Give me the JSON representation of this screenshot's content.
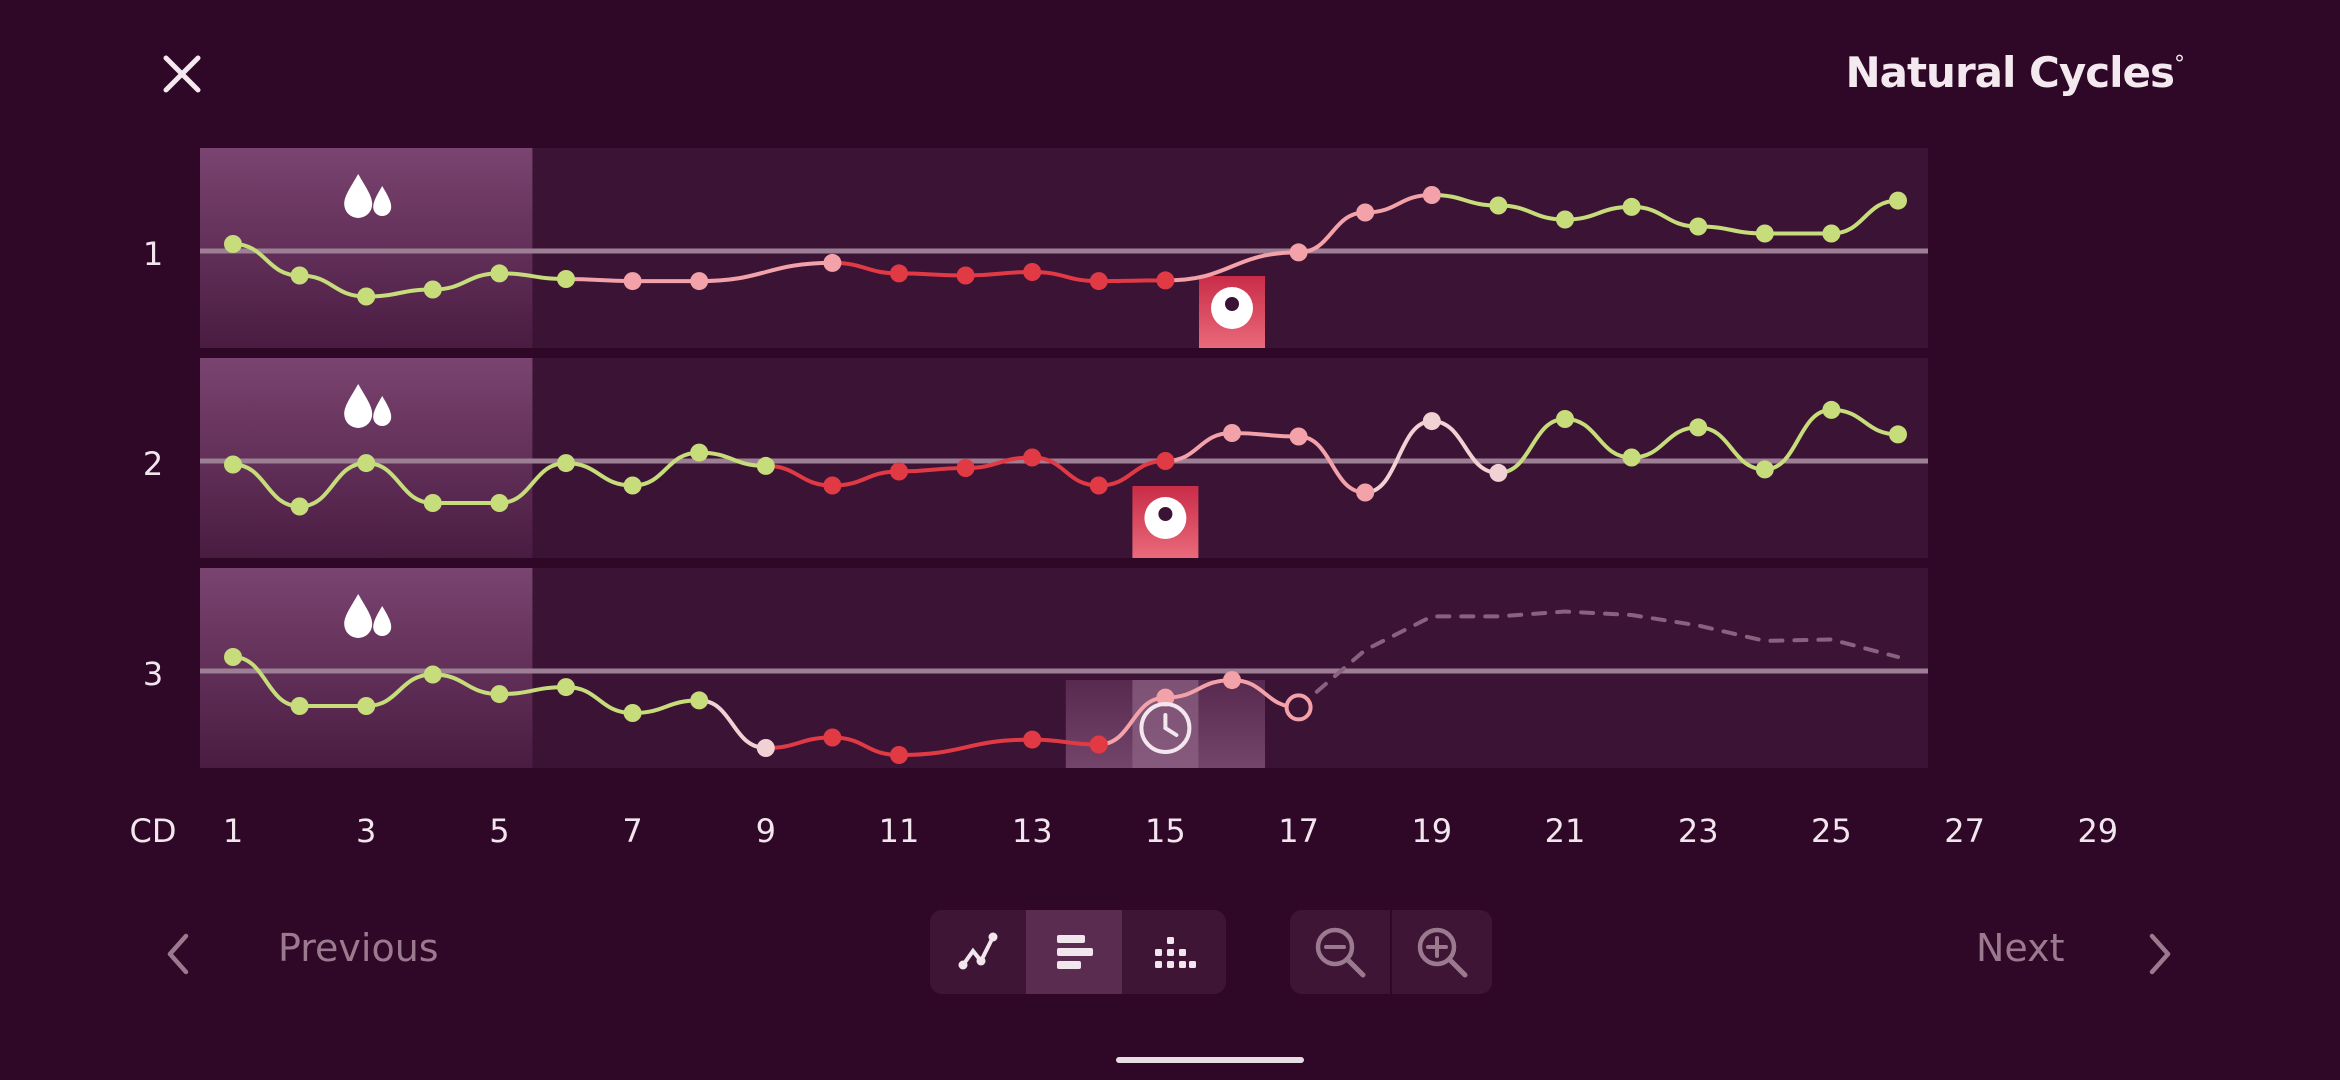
{
  "header": {
    "close_icon": "close-icon",
    "brand_name": "Natural Cycles",
    "brand_mark": "°"
  },
  "colors": {
    "background": "#2f0727",
    "panel": "#3b1335",
    "period": "#6e3762",
    "green": "#c7dc7a",
    "pink": "#f2a2a8",
    "red": "#e23a44",
    "pale": "#f0d2d4",
    "predicted": "#8a6280"
  },
  "x_axis": {
    "label": "CD",
    "ticks": [
      "1",
      "3",
      "5",
      "7",
      "9",
      "11",
      "13",
      "15",
      "17",
      "19",
      "21",
      "23",
      "25",
      "27",
      "29"
    ]
  },
  "cycles": [
    {
      "label": "1",
      "period_days": [
        1,
        5
      ],
      "ovulation_day": 16,
      "ovulation_icon": "ovulation-icon",
      "points": [
        {
          "day": 1,
          "v": 0.1,
          "c": "green"
        },
        {
          "day": 2,
          "v": -0.35,
          "c": "green"
        },
        {
          "day": 3,
          "v": -0.65,
          "c": "green"
        },
        {
          "day": 4,
          "v": -0.55,
          "c": "green"
        },
        {
          "day": 5,
          "v": -0.32,
          "c": "green"
        },
        {
          "day": 6,
          "v": -0.4,
          "c": "green"
        },
        {
          "day": 7,
          "v": -0.43,
          "c": "pink"
        },
        {
          "day": 8,
          "v": -0.43,
          "c": "pink"
        },
        {
          "day": 10,
          "v": -0.17,
          "c": "pink"
        },
        {
          "day": 11,
          "v": -0.32,
          "c": "red"
        },
        {
          "day": 12,
          "v": -0.35,
          "c": "red"
        },
        {
          "day": 13,
          "v": -0.3,
          "c": "red"
        },
        {
          "day": 14,
          "v": -0.43,
          "c": "red"
        },
        {
          "day": 15,
          "v": -0.42,
          "c": "red"
        },
        {
          "day": 17,
          "v": -0.02,
          "c": "pink"
        },
        {
          "day": 18,
          "v": 0.55,
          "c": "pink"
        },
        {
          "day": 19,
          "v": 0.8,
          "c": "pink"
        },
        {
          "day": 20,
          "v": 0.65,
          "c": "green"
        },
        {
          "day": 21,
          "v": 0.45,
          "c": "green"
        },
        {
          "day": 22,
          "v": 0.63,
          "c": "green"
        },
        {
          "day": 23,
          "v": 0.35,
          "c": "green"
        },
        {
          "day": 24,
          "v": 0.25,
          "c": "green"
        },
        {
          "day": 25,
          "v": 0.25,
          "c": "green"
        },
        {
          "day": 26,
          "v": 0.72,
          "c": "green"
        }
      ],
      "predicted": []
    },
    {
      "label": "2",
      "period_days": [
        1,
        5
      ],
      "ovulation_day": 15,
      "ovulation_icon": "ovulation-icon",
      "points": [
        {
          "day": 1,
          "v": -0.05,
          "c": "green"
        },
        {
          "day": 2,
          "v": -0.65,
          "c": "green"
        },
        {
          "day": 3,
          "v": -0.03,
          "c": "green"
        },
        {
          "day": 4,
          "v": -0.6,
          "c": "green"
        },
        {
          "day": 5,
          "v": -0.6,
          "c": "green"
        },
        {
          "day": 6,
          "v": -0.03,
          "c": "green"
        },
        {
          "day": 7,
          "v": -0.35,
          "c": "green"
        },
        {
          "day": 8,
          "v": 0.12,
          "c": "green"
        },
        {
          "day": 9,
          "v": -0.07,
          "c": "green"
        },
        {
          "day": 10,
          "v": -0.35,
          "c": "red"
        },
        {
          "day": 11,
          "v": -0.15,
          "c": "red"
        },
        {
          "day": 12,
          "v": -0.1,
          "c": "red"
        },
        {
          "day": 13,
          "v": 0.05,
          "c": "red"
        },
        {
          "day": 14,
          "v": -0.35,
          "c": "red"
        },
        {
          "day": 15,
          "v": 0.0,
          "c": "red"
        },
        {
          "day": 16,
          "v": 0.4,
          "c": "pink"
        },
        {
          "day": 17,
          "v": 0.35,
          "c": "pink"
        },
        {
          "day": 18,
          "v": -0.45,
          "c": "pink"
        },
        {
          "day": 19,
          "v": 0.57,
          "c": "pale"
        },
        {
          "day": 20,
          "v": -0.17,
          "c": "pale"
        },
        {
          "day": 21,
          "v": 0.6,
          "c": "green"
        },
        {
          "day": 22,
          "v": 0.05,
          "c": "green"
        },
        {
          "day": 23,
          "v": 0.48,
          "c": "green"
        },
        {
          "day": 24,
          "v": -0.12,
          "c": "green"
        },
        {
          "day": 25,
          "v": 0.73,
          "c": "green"
        },
        {
          "day": 26,
          "v": 0.38,
          "c": "green"
        }
      ],
      "predicted": []
    },
    {
      "label": "3",
      "period_days": [
        1,
        5
      ],
      "fertile_window_days": [
        14,
        16
      ],
      "today_day": 15,
      "today_icon": "clock-icon",
      "points": [
        {
          "day": 1,
          "v": 0.2,
          "c": "green"
        },
        {
          "day": 2,
          "v": -0.5,
          "c": "green"
        },
        {
          "day": 3,
          "v": -0.5,
          "c": "green"
        },
        {
          "day": 4,
          "v": -0.05,
          "c": "green"
        },
        {
          "day": 5,
          "v": -0.33,
          "c": "green"
        },
        {
          "day": 6,
          "v": -0.23,
          "c": "green"
        },
        {
          "day": 7,
          "v": -0.6,
          "c": "green"
        },
        {
          "day": 8,
          "v": -0.42,
          "c": "green"
        },
        {
          "day": 9,
          "v": -1.1,
          "c": "pale"
        },
        {
          "day": 10,
          "v": -0.95,
          "c": "red"
        },
        {
          "day": 11,
          "v": -1.2,
          "c": "red"
        },
        {
          "day": 13,
          "v": -0.98,
          "c": "red"
        },
        {
          "day": 14,
          "v": -1.05,
          "c": "red"
        },
        {
          "day": 15,
          "v": -0.38,
          "c": "pink"
        },
        {
          "day": 16,
          "v": -0.13,
          "c": "pink"
        },
        {
          "day": 17,
          "v": -0.52,
          "c": "pink",
          "hollow": true
        }
      ],
      "predicted": [
        {
          "day": 17,
          "v": -0.52
        },
        {
          "day": 18,
          "v": 0.3
        },
        {
          "day": 19,
          "v": 0.78
        },
        {
          "day": 20,
          "v": 0.78
        },
        {
          "day": 21,
          "v": 0.85
        },
        {
          "day": 22,
          "v": 0.8
        },
        {
          "day": 23,
          "v": 0.65
        },
        {
          "day": 24,
          "v": 0.43
        },
        {
          "day": 25,
          "v": 0.45
        },
        {
          "day": 26,
          "v": 0.2
        }
      ]
    }
  ],
  "footer": {
    "previous_label": "Previous",
    "next_label": "Next",
    "previous_icon": "chevron-left-icon",
    "next_icon": "chevron-right-icon",
    "view_modes": [
      {
        "name": "line-graph-icon",
        "active": false
      },
      {
        "name": "bars-icon",
        "active": true
      },
      {
        "name": "dots-grid-icon",
        "active": false
      }
    ],
    "zoom_out_icon": "zoom-out-icon",
    "zoom_in_icon": "zoom-in-icon"
  }
}
